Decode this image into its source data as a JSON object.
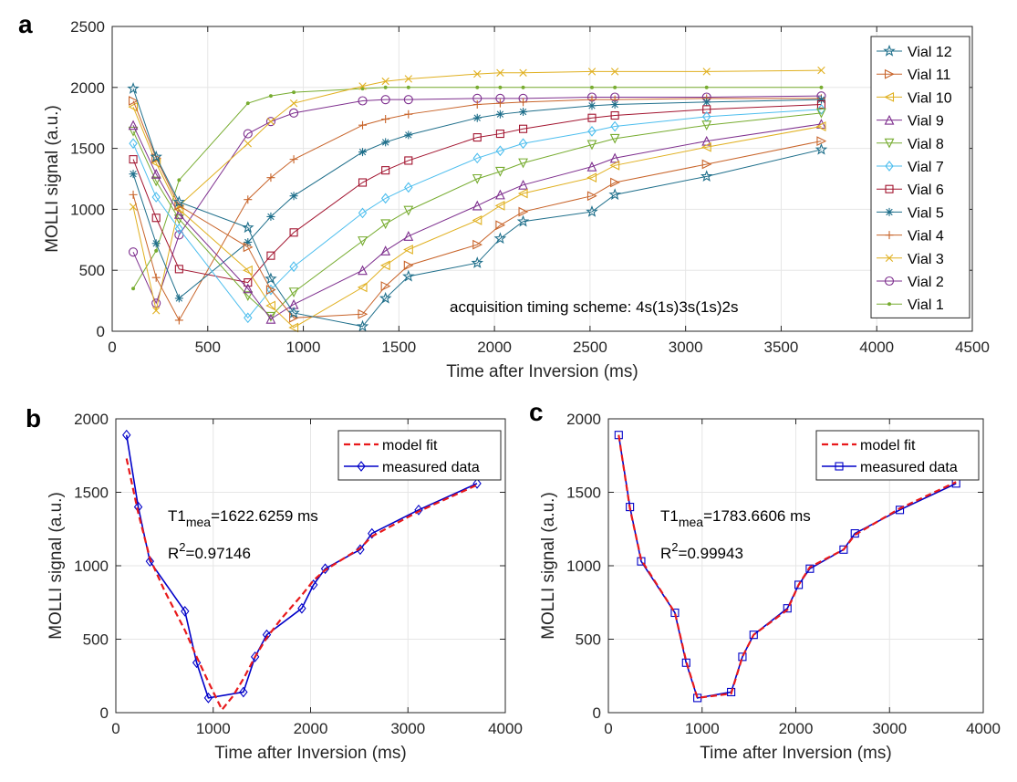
{
  "chart_data": [
    {
      "panel": "a",
      "type": "line",
      "xlabel": "Time after Inversion (ms)",
      "ylabel": "MOLLI signal (a.u.)",
      "xlim": [
        0,
        4500
      ],
      "ylim": [
        0,
        2500
      ],
      "xticks": [
        0,
        500,
        1000,
        1500,
        2000,
        2500,
        3000,
        3500,
        4000,
        4500
      ],
      "yticks": [
        0,
        500,
        1000,
        1500,
        2000,
        2500
      ],
      "grid": true,
      "legend_position": "right",
      "annotation": "acquisition timing scheme: 4s(1s)3s(1s)2s",
      "x": [
        110,
        230,
        350,
        710,
        830,
        950,
        1310,
        1430,
        1550,
        1910,
        2030,
        2150,
        2510,
        2630,
        3110,
        3710
      ],
      "series": [
        {
          "name": "Vial 12",
          "color": "#1f6f8b",
          "marker": "star",
          "values": [
            1990,
            1430,
            1060,
            850,
            430,
            150,
            40,
            270,
            450,
            560,
            760,
            900,
            980,
            1120,
            1270,
            1490
          ]
        },
        {
          "name": "Vial 11",
          "color": "#c8642a",
          "marker": "tri-right",
          "values": [
            1890,
            1420,
            1030,
            690,
            340,
            110,
            140,
            370,
            540,
            710,
            870,
            980,
            1110,
            1220,
            1370,
            1560
          ]
        },
        {
          "name": "Vial 10",
          "color": "#e0b020",
          "marker": "tri-left",
          "values": [
            1840,
            1380,
            1000,
            500,
            210,
            30,
            360,
            540,
            670,
            910,
            1030,
            1130,
            1260,
            1360,
            1510,
            1680
          ]
        },
        {
          "name": "Vial 9",
          "color": "#7e2f8e",
          "marker": "tri-up",
          "values": [
            1690,
            1290,
            960,
            350,
            100,
            220,
            500,
            660,
            780,
            1030,
            1120,
            1200,
            1350,
            1420,
            1560,
            1700
          ]
        },
        {
          "name": "Vial 8",
          "color": "#77ac30",
          "marker": "tri-down",
          "values": [
            1640,
            1230,
            920,
            290,
            120,
            320,
            740,
            880,
            990,
            1250,
            1310,
            1380,
            1530,
            1580,
            1690,
            1790
          ]
        },
        {
          "name": "Vial 7",
          "color": "#4dbeee",
          "marker": "diamond",
          "values": [
            1540,
            1100,
            840,
            110,
            340,
            530,
            970,
            1090,
            1180,
            1420,
            1480,
            1540,
            1640,
            1680,
            1760,
            1820
          ]
        },
        {
          "name": "Vial 6",
          "color": "#a2142f",
          "marker": "square",
          "values": [
            1410,
            930,
            510,
            400,
            620,
            810,
            1220,
            1320,
            1400,
            1590,
            1620,
            1660,
            1750,
            1770,
            1820,
            1860
          ]
        },
        {
          "name": "Vial 5",
          "color": "#1f6f8b",
          "marker": "asterisk",
          "values": [
            1290,
            720,
            270,
            730,
            940,
            1110,
            1470,
            1550,
            1610,
            1750,
            1780,
            1800,
            1850,
            1860,
            1880,
            1900
          ]
        },
        {
          "name": "Vial 4",
          "color": "#c8642a",
          "marker": "plus",
          "values": [
            1120,
            440,
            90,
            1080,
            1260,
            1410,
            1690,
            1740,
            1780,
            1860,
            1870,
            1880,
            1900,
            1900,
            1910,
            1910
          ]
        },
        {
          "name": "Vial 3",
          "color": "#e0b020",
          "marker": "x",
          "values": [
            1020,
            170,
            1030,
            1540,
            1720,
            1870,
            2010,
            2050,
            2070,
            2110,
            2120,
            2120,
            2130,
            2130,
            2130,
            2140
          ]
        },
        {
          "name": "Vial 2",
          "color": "#7e2f8e",
          "marker": "circle",
          "values": [
            650,
            230,
            790,
            1620,
            1720,
            1790,
            1890,
            1900,
            1900,
            1910,
            1910,
            1910,
            1920,
            1920,
            1920,
            1930
          ]
        },
        {
          "name": "Vial 1",
          "color": "#77ac30",
          "marker": "dot",
          "values": [
            350,
            660,
            1240,
            1870,
            1930,
            1960,
            1990,
            2000,
            2000,
            2000,
            2000,
            2000,
            2000,
            2000,
            2000,
            2000
          ]
        }
      ]
    },
    {
      "panel": "b",
      "type": "line",
      "xlabel": "Time after Inversion (ms)",
      "ylabel": "MOLLI signal (a.u.)",
      "xlim": [
        0,
        4000
      ],
      "ylim": [
        0,
        2000
      ],
      "xticks": [
        0,
        1000,
        2000,
        3000,
        4000
      ],
      "yticks": [
        0,
        500,
        1000,
        1500,
        2000
      ],
      "grid": true,
      "legend_position": "top-right",
      "annotation_t1_prefix": "T1",
      "annotation_t1_sub": "mea",
      "annotation_t1_value": "=1622.6259 ms",
      "annotation_r2_prefix": "R",
      "annotation_r2_sup": "2",
      "annotation_r2_value": "=0.97146",
      "series": [
        {
          "name": "model fit",
          "style": "dashed",
          "color": "#e8191b",
          "x": [
            110,
            230,
            350,
            500,
            710,
            830,
            950,
            1090,
            1200,
            1310,
            1430,
            1550,
            1700,
            1910,
            2030,
            2150,
            2510,
            2630,
            3110,
            3710
          ],
          "y": [
            1730,
            1360,
            1050,
            830,
            560,
            380,
            210,
            20,
            110,
            230,
            380,
            510,
            640,
            800,
            900,
            970,
            1120,
            1200,
            1370,
            1550
          ]
        },
        {
          "name": "measured data",
          "style": "solid",
          "color": "#0000c8",
          "marker": "diamond",
          "x": [
            110,
            230,
            350,
            710,
            830,
            950,
            1310,
            1430,
            1550,
            1910,
            2030,
            2150,
            2510,
            2630,
            3110,
            3710
          ],
          "y": [
            1890,
            1400,
            1030,
            690,
            340,
            100,
            140,
            380,
            530,
            710,
            870,
            980,
            1110,
            1220,
            1380,
            1560
          ]
        }
      ]
    },
    {
      "panel": "c",
      "type": "line",
      "xlabel": "Time after Inversion (ms)",
      "ylabel": "MOLLI signal (a.u.)",
      "xlim": [
        0,
        4000
      ],
      "ylim": [
        0,
        2000
      ],
      "xticks": [
        0,
        1000,
        2000,
        3000,
        4000
      ],
      "yticks": [
        0,
        500,
        1000,
        1500,
        2000
      ],
      "grid": true,
      "legend_position": "top-right",
      "annotation_t1_prefix": "T1",
      "annotation_t1_sub": "mea",
      "annotation_t1_value": "=1783.6606 ms",
      "annotation_r2_prefix": "R",
      "annotation_r2_sup": "2",
      "annotation_r2_value": "=0.99943",
      "series": [
        {
          "name": "model fit",
          "style": "dashed",
          "color": "#e8191b",
          "x": [
            110,
            230,
            350,
            710,
            830,
            950,
            1310,
            1430,
            1550,
            1910,
            2030,
            2150,
            2510,
            2630,
            3110,
            3710
          ],
          "y": [
            1890,
            1390,
            1040,
            680,
            350,
            100,
            130,
            380,
            530,
            700,
            870,
            990,
            1110,
            1210,
            1390,
            1570
          ]
        },
        {
          "name": "measured data",
          "style": "solid",
          "color": "#0000c8",
          "marker": "square",
          "x": [
            110,
            230,
            350,
            710,
            830,
            950,
            1310,
            1430,
            1550,
            1910,
            2030,
            2150,
            2510,
            2630,
            3110,
            3710
          ],
          "y": [
            1890,
            1400,
            1030,
            680,
            340,
            100,
            140,
            380,
            530,
            710,
            870,
            980,
            1110,
            1220,
            1380,
            1560
          ]
        }
      ]
    }
  ]
}
